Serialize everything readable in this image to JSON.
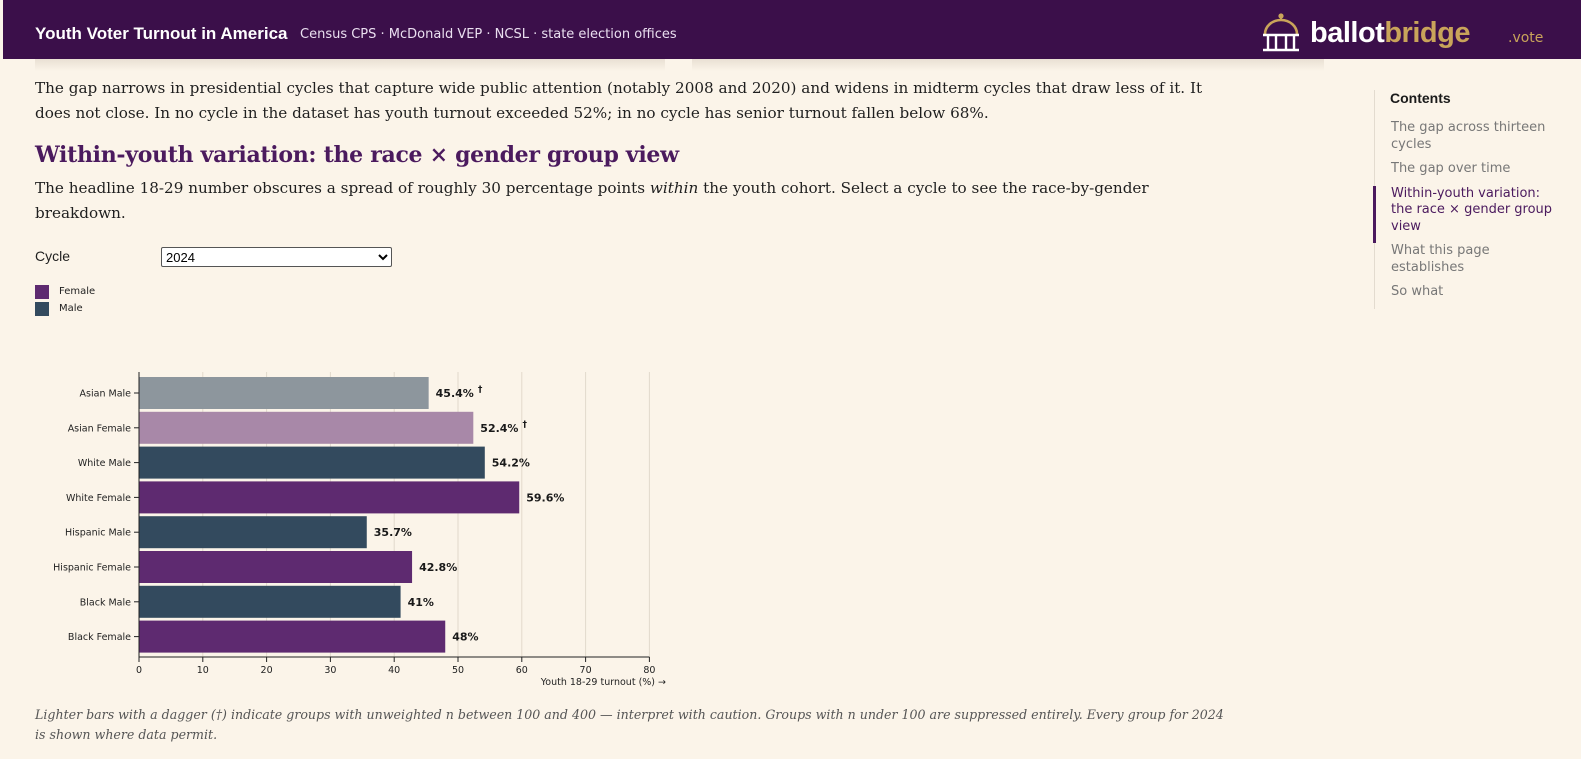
{
  "header": {
    "title": "Youth Voter Turnout in America",
    "sources": "Census CPS · McDonald VEP · NCSL · state election offices",
    "logo_part1": "ballot",
    "logo_part2": "bridge",
    "vote_link": ".vote",
    "brand_color": "#3b0f4a",
    "accent_color": "#c9a45a",
    "logo_icon": "capitol-dome-icon"
  },
  "article": {
    "intro_paragraph": "The gap narrows in presidential cycles that capture wide public attention (notably 2008 and 2020) and widens in midterm cycles that draw less of it. It does not close. In no cycle in the dataset has youth turnout exceeded 52%; in no cycle has senior turnout fallen below 68%.",
    "section_title": "Within-youth variation: the race × gender group view",
    "section_para_before": "The headline 18-29 number obscures a spread of roughly 30 percentage points ",
    "section_para_em": "within",
    "section_para_after": " the youth cohort. Select a cycle to see the race-by-gender breakdown.",
    "footnote": "Lighter bars with a dagger (†) indicate groups with unweighted n between 100 and 400 — interpret with caution. Groups with n under 100 are suppressed entirely. Every group for 2024 is shown where data permit."
  },
  "controls": {
    "cycle_label": "Cycle",
    "cycle_selected": "2024"
  },
  "legend": [
    {
      "label": "Female",
      "color": "#5e2a70"
    },
    {
      "label": "Male",
      "color": "#334a5e"
    }
  ],
  "chart_data": {
    "type": "bar",
    "orientation": "horizontal",
    "categories": [
      "Asian Male",
      "Asian Female",
      "White Male",
      "White Female",
      "Hispanic Male",
      "Hispanic Female",
      "Black Male",
      "Black Female"
    ],
    "values": [
      45.4,
      52.4,
      54.2,
      59.6,
      35.7,
      42.8,
      41,
      48
    ],
    "value_labels": [
      "45.4%",
      "52.4%",
      "54.2%",
      "59.6%",
      "35.7%",
      "42.8%",
      "41%",
      "48%"
    ],
    "gender": [
      "Male",
      "Female",
      "Male",
      "Female",
      "Male",
      "Female",
      "Male",
      "Female"
    ],
    "low_sample": [
      true,
      true,
      false,
      false,
      false,
      false,
      false,
      false
    ],
    "dagger": "†",
    "xlabel": "Youth 18-29 turnout (%) →",
    "xlim": [
      0,
      80
    ],
    "xticks": [
      0,
      10,
      20,
      30,
      40,
      50,
      60,
      70,
      80
    ],
    "grid": "vertical",
    "colors": {
      "Female": "#5e2a70",
      "Male": "#334a5e",
      "Female_light": "#a888a8",
      "Male_light": "#8d969d"
    }
  },
  "toc": {
    "title": "Contents",
    "items": [
      {
        "label": "The gap across thirteen cycles",
        "active": false
      },
      {
        "label": "The gap over time",
        "active": false
      },
      {
        "label": "Within-youth variation: the race × gender group view",
        "active": true
      },
      {
        "label": "What this page establishes",
        "active": false
      },
      {
        "label": "So what",
        "active": false
      }
    ]
  }
}
